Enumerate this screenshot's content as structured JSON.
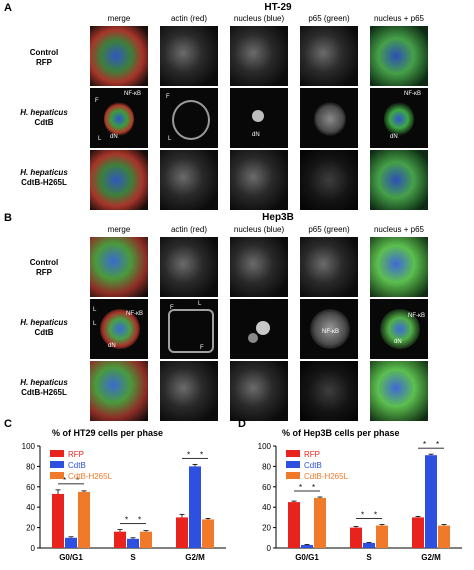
{
  "figure": {
    "panel_A": {
      "letter": "A",
      "title": "HT-29"
    },
    "panel_B": {
      "letter": "B",
      "title": "Hep3B"
    },
    "panel_C": {
      "letter": "C",
      "title": "% of HT29 cells per phase"
    },
    "panel_D": {
      "letter": "D",
      "title": "% of Hep3B cells per phase"
    },
    "columns": [
      "merge",
      "actin (red)",
      "nucleus (blue)",
      "p65 (green)",
      "nucleus + p65"
    ],
    "rows": [
      {
        "line1": "Control",
        "line2": "RFP"
      },
      {
        "line1": "H. hepaticus",
        "line2": "CdtB"
      },
      {
        "line1": "H. hepaticus",
        "line2": "CdtB-H265L"
      }
    ],
    "annotations": {
      "nfkb": "NF-κB",
      "dN": "dN",
      "F": "F",
      "L": "L"
    }
  },
  "colors": {
    "RFP": "#e8231d",
    "CdtB": "#2e50e0",
    "CdtB-H265L": "#f07a2a"
  },
  "chart_data": [
    {
      "type": "bar",
      "title": "% of HT29 cells per phase",
      "categories": [
        "G0/G1",
        "S",
        "G2/M"
      ],
      "series": [
        {
          "name": "RFP",
          "values": [
            53,
            16,
            30
          ],
          "errors": [
            4,
            2,
            3
          ]
        },
        {
          "name": "CdtB",
          "values": [
            10,
            9,
            80
          ],
          "errors": [
            1,
            1,
            2
          ]
        },
        {
          "name": "CdtB-H265L",
          "values": [
            55,
            16,
            28
          ],
          "errors": [
            1,
            1,
            1
          ]
        }
      ],
      "ylim": [
        0,
        100
      ],
      "yticks": [
        0,
        20,
        40,
        60,
        80,
        100
      ],
      "significance": "*",
      "legend": "top-left"
    },
    {
      "type": "bar",
      "title": "% of Hep3B cells per phase",
      "categories": [
        "G0/G1",
        "S",
        "G2/M"
      ],
      "series": [
        {
          "name": "RFP",
          "values": [
            45,
            20,
            30
          ],
          "errors": [
            1,
            1,
            1
          ]
        },
        {
          "name": "CdtB",
          "values": [
            3,
            5,
            91
          ],
          "errors": [
            0.5,
            0.5,
            1
          ]
        },
        {
          "name": "CdtB-H265L",
          "values": [
            49,
            22,
            22
          ],
          "errors": [
            1,
            1,
            1
          ]
        }
      ],
      "ylim": [
        0,
        100
      ],
      "yticks": [
        0,
        20,
        40,
        60,
        80,
        100
      ],
      "significance": "*",
      "legend": "top-left"
    }
  ]
}
